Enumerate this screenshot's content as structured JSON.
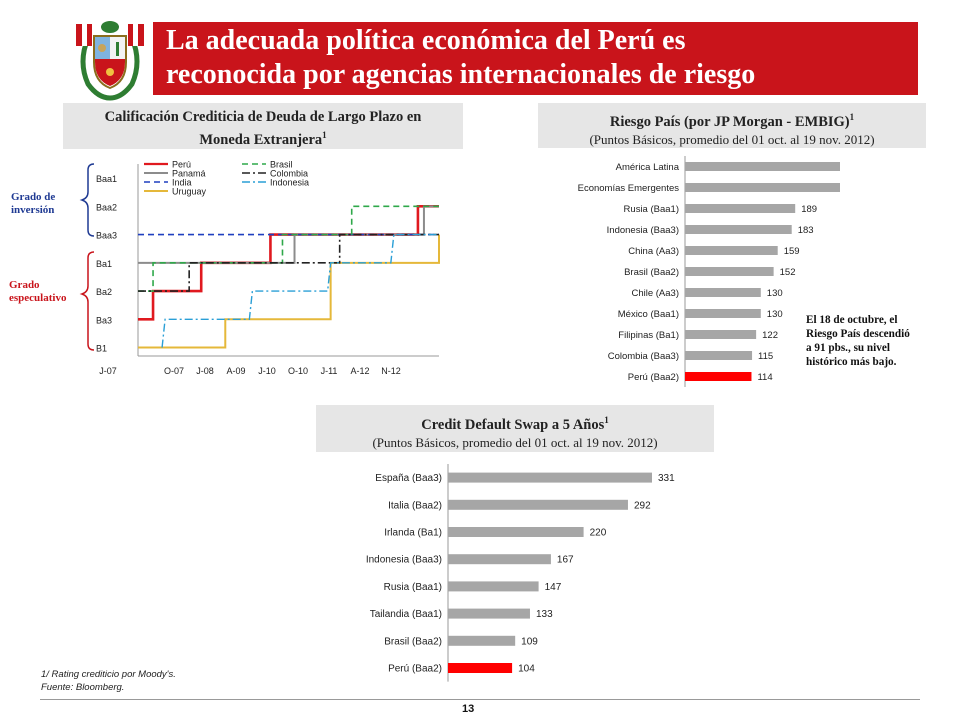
{
  "header": {
    "title_line1": "La adecuada política económica del Perú es",
    "title_line2": "reconocida por agencias internacionales de riesgo",
    "colors": {
      "title_bar": "#c9141b",
      "title_text": "#ffffff"
    }
  },
  "crest_icon": "peru-coat-of-arms-icon",
  "rating_panel": {
    "title_line1": "Calificación Crediticia de Deuda de Largo Plazo en",
    "title_line2": "Moneda Extranjera",
    "title_sup": "1",
    "label_investment_1": "Grado de",
    "label_investment_2": "inversión",
    "label_speculative_1": "Grado",
    "label_speculative_2": "especulativo"
  },
  "embig_panel": {
    "title": "Riesgo País (por JP Morgan - EMBIG)",
    "title_sup": "1",
    "subtitle": "(Puntos Básicos, promedio del 01 oct. al 19 nov. 2012)"
  },
  "cds_panel": {
    "title": "Credit Default Swap a 5 Años",
    "title_sup": "1",
    "subtitle": "(Puntos Básicos, promedio del 01 oct. al 19 nov. 2012)"
  },
  "side_note": {
    "line1": "El 18 de octubre, el",
    "line2": "Riesgo País descendió",
    "line3": "a 91 pbs., su nivel",
    "line4": "histórico  más bajo."
  },
  "footer": {
    "note": "1/ Rating crediticio por Moody's.",
    "source": "Fuente: Bloomberg.",
    "page": "13"
  },
  "chart_data": [
    {
      "type": "line",
      "ytick_labels": [
        "Baa1",
        "Baa2",
        "Baa3",
        "Ba1",
        "Ba2",
        "Ba3",
        "B1"
      ],
      "ytick_values": [
        8,
        9,
        10,
        11,
        12,
        13,
        14
      ],
      "xtick_labels": [
        "J-07",
        "O-07",
        "J-08",
        "A-09",
        "J-10",
        "O-10",
        "J-11",
        "A-12",
        "N-12"
      ],
      "x_range": [
        0,
        100
      ],
      "ylim": [
        7.5,
        14.3
      ],
      "line_style": "step",
      "series": [
        {
          "name": "Perú",
          "color": "#e0191f",
          "dash": "solid",
          "width": 2.6,
          "points": [
            [
              0,
              13
            ],
            [
              5,
              13
            ],
            [
              5,
              12
            ],
            [
              21,
              12
            ],
            [
              21,
              11
            ],
            [
              44,
              11
            ],
            [
              44,
              10
            ],
            [
              93,
              10
            ],
            [
              93,
              9
            ],
            [
              100,
              9
            ]
          ]
        },
        {
          "name": "Panamá",
          "color": "#8c8c8c",
          "dash": "solid",
          "width": 2,
          "points": [
            [
              0,
              11
            ],
            [
              52,
              11
            ],
            [
              52,
              10
            ],
            [
              95,
              10
            ],
            [
              95,
              9
            ],
            [
              100,
              9
            ]
          ]
        },
        {
          "name": "India",
          "color": "#1f3fbf",
          "dash": "dashed",
          "width": 1.6,
          "points": [
            [
              0,
              10
            ],
            [
              100,
              10
            ]
          ]
        },
        {
          "name": "Uruguay",
          "color": "#e5b83a",
          "dash": "solid",
          "width": 2,
          "points": [
            [
              0,
              14
            ],
            [
              29,
              14
            ],
            [
              29,
              13
            ],
            [
              64,
              13
            ],
            [
              64,
              11
            ],
            [
              100,
              11
            ],
            [
              100,
              10
            ]
          ]
        },
        {
          "name": "Brasil",
          "color": "#2fa84a",
          "dash": "dashed",
          "width": 1.6,
          "points": [
            [
              0,
              12
            ],
            [
              5,
              12
            ],
            [
              5,
              11
            ],
            [
              48,
              11
            ],
            [
              48,
              10
            ],
            [
              71,
              10
            ],
            [
              71,
              9
            ],
            [
              100,
              9
            ]
          ]
        },
        {
          "name": "Colombia",
          "color": "#222222",
          "dash": "dashdot",
          "width": 1.6,
          "points": [
            [
              0,
              12
            ],
            [
              17,
              12
            ],
            [
              17,
              11
            ],
            [
              67,
              11
            ],
            [
              67,
              10
            ],
            [
              100,
              10
            ]
          ]
        },
        {
          "name": "Indonesia",
          "color": "#2a9fd6",
          "dash": "dashdot",
          "width": 1.4,
          "points": [
            [
              8,
              14
            ],
            [
              9,
              13
            ],
            [
              37,
              13
            ],
            [
              38,
              12
            ],
            [
              63,
              12
            ],
            [
              64,
              11
            ],
            [
              84,
              11
            ],
            [
              85,
              10
            ],
            [
              100,
              10
            ]
          ]
        }
      ]
    },
    {
      "type": "bar",
      "orientation": "horizontal",
      "categories": [
        "América Latina",
        "Economías Emergentes",
        "Rusia (Baa1)",
        "Indonesia (Baa3)",
        "China (Aa3)",
        "Brasil (Baa2)",
        "Chile (Aa3)",
        "México (Baa1)",
        "Filipinas (Ba1)",
        "Colombia (Baa3)",
        "Perú (Baa2)"
      ],
      "values": [
        343,
        271,
        189,
        183,
        159,
        152,
        130,
        130,
        122,
        115,
        114
      ],
      "highlight": "Perú (Baa2)",
      "colors": {
        "bar": "#a6a6a6",
        "highlight": "#ff0000"
      }
    },
    {
      "type": "bar",
      "orientation": "horizontal",
      "categories": [
        "España (Baa3)",
        "Italia (Baa2)",
        "Irlanda (Ba1)",
        "Indonesia (Baa3)",
        "Rusia (Baa1)",
        "Tailandia (Baa1)",
        "Brasil (Baa2)",
        "Perú (Baa2)"
      ],
      "values": [
        331,
        292,
        220,
        167,
        147,
        133,
        109,
        104
      ],
      "highlight": "Perú (Baa2)",
      "colors": {
        "bar": "#a6a6a6",
        "highlight": "#ff0000"
      }
    }
  ]
}
